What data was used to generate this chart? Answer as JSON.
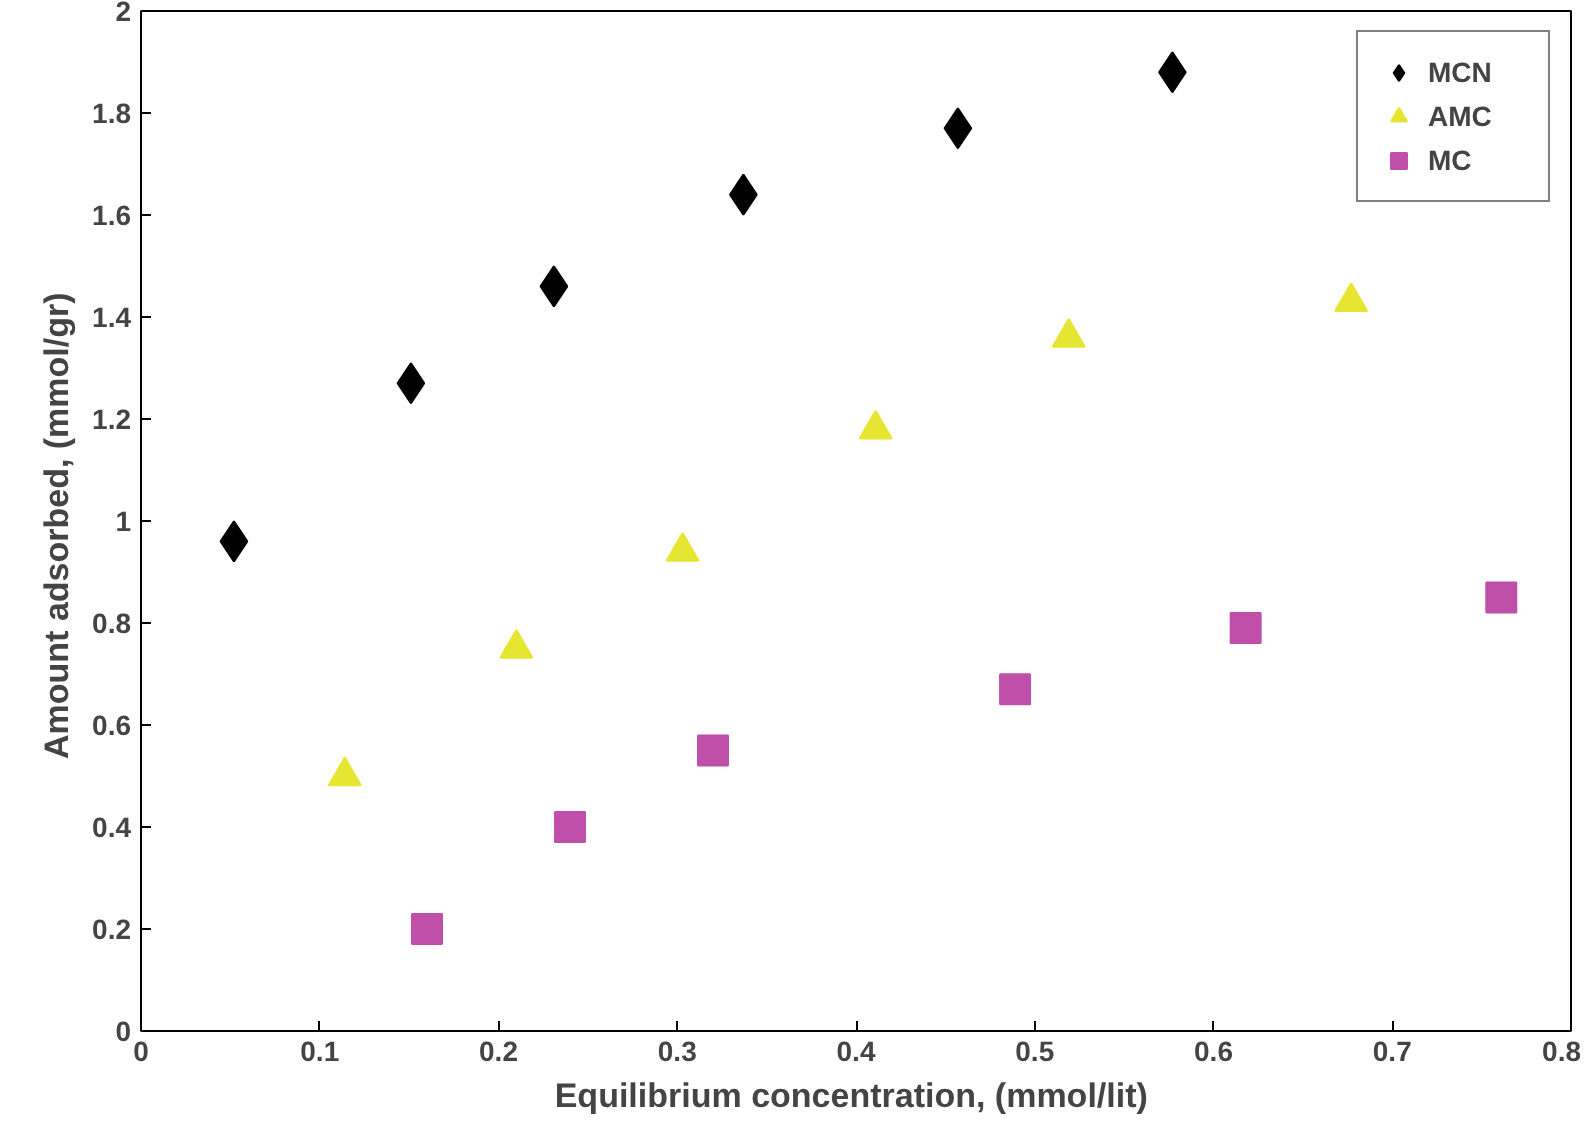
{
  "chart_data": {
    "type": "scatter",
    "xlabel": "Equilibrium concentration,  (mmol/lit)",
    "ylabel": "Amount adsorbed,  (mmol/gr)",
    "xlim": [
      0,
      0.8
    ],
    "ylim": [
      0,
      2
    ],
    "xticks": [
      0,
      0.1,
      0.2,
      0.3,
      0.4,
      0.5,
      0.6,
      0.7,
      0.8
    ],
    "yticks": [
      0,
      0.2,
      0.4,
      0.6,
      0.8,
      1,
      1.2,
      1.4,
      1.6,
      1.8,
      2
    ],
    "grid": false,
    "legend": "top right",
    "series": [
      {
        "name": "MCN",
        "color": "#000000",
        "marker": "diamond",
        "x": [
          0.052,
          0.151,
          0.231,
          0.337,
          0.457,
          0.577
        ],
        "values": [
          0.96,
          1.27,
          1.46,
          1.64,
          1.77,
          1.88
        ]
      },
      {
        "name": "AMC",
        "color": "#e6e632",
        "marker": "triangle",
        "x": [
          0.114,
          0.21,
          0.303,
          0.411,
          0.519,
          0.677
        ],
        "values": [
          0.5,
          0.75,
          0.94,
          1.18,
          1.36,
          1.43
        ]
      },
      {
        "name": "MC",
        "color": "#bf4fa8",
        "marker": "square",
        "x": [
          0.16,
          0.24,
          0.32,
          0.489,
          0.618,
          0.761
        ],
        "values": [
          0.2,
          0.4,
          0.55,
          0.67,
          0.79,
          0.85
        ]
      }
    ]
  }
}
